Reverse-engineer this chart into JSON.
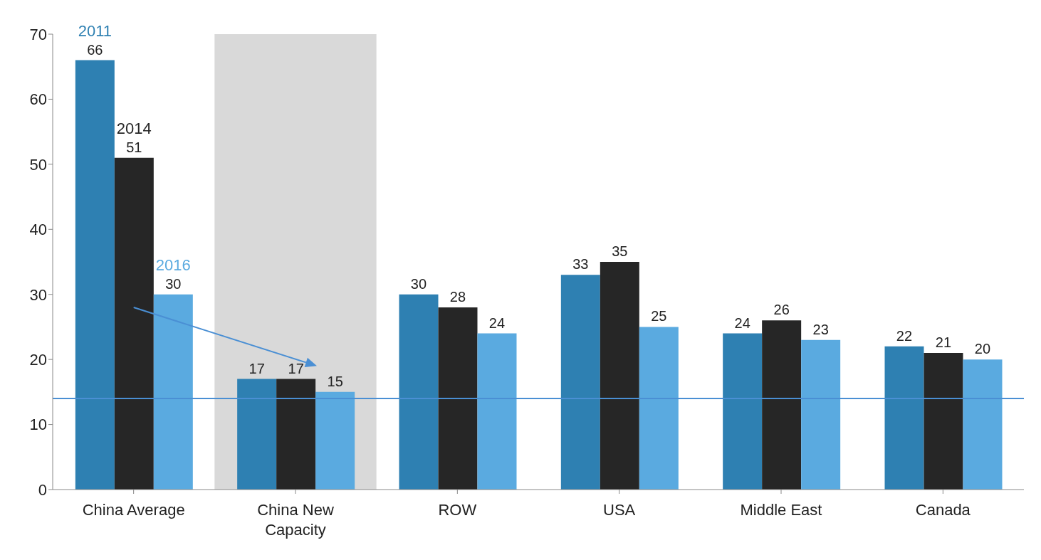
{
  "chart_data": {
    "type": "bar",
    "categories": [
      "China Average",
      "China New Capacity",
      "ROW",
      "USA",
      "Middle East",
      "Canada"
    ],
    "series": [
      {
        "name": "2011",
        "color": "#2e80b2",
        "values": [
          66,
          17,
          30,
          33,
          24,
          22
        ]
      },
      {
        "name": "2014",
        "color": "#262626",
        "values": [
          51,
          17,
          28,
          35,
          26,
          21
        ]
      },
      {
        "name": "2016",
        "color": "#5aaae0",
        "values": [
          30,
          15,
          24,
          25,
          23,
          20
        ]
      }
    ],
    "ylim": [
      0,
      70
    ],
    "yticks": [
      0,
      10,
      20,
      30,
      40,
      50,
      60,
      70
    ],
    "grid": false,
    "data_labels": true,
    "ref_lines": [
      {
        "axis": "y",
        "value": 14,
        "color": "#4a8fd4"
      }
    ],
    "bands": [
      {
        "axis": "x",
        "from": "China New Capacity",
        "to": "China New Capacity",
        "color": "#d9d9d9"
      }
    ]
  }
}
